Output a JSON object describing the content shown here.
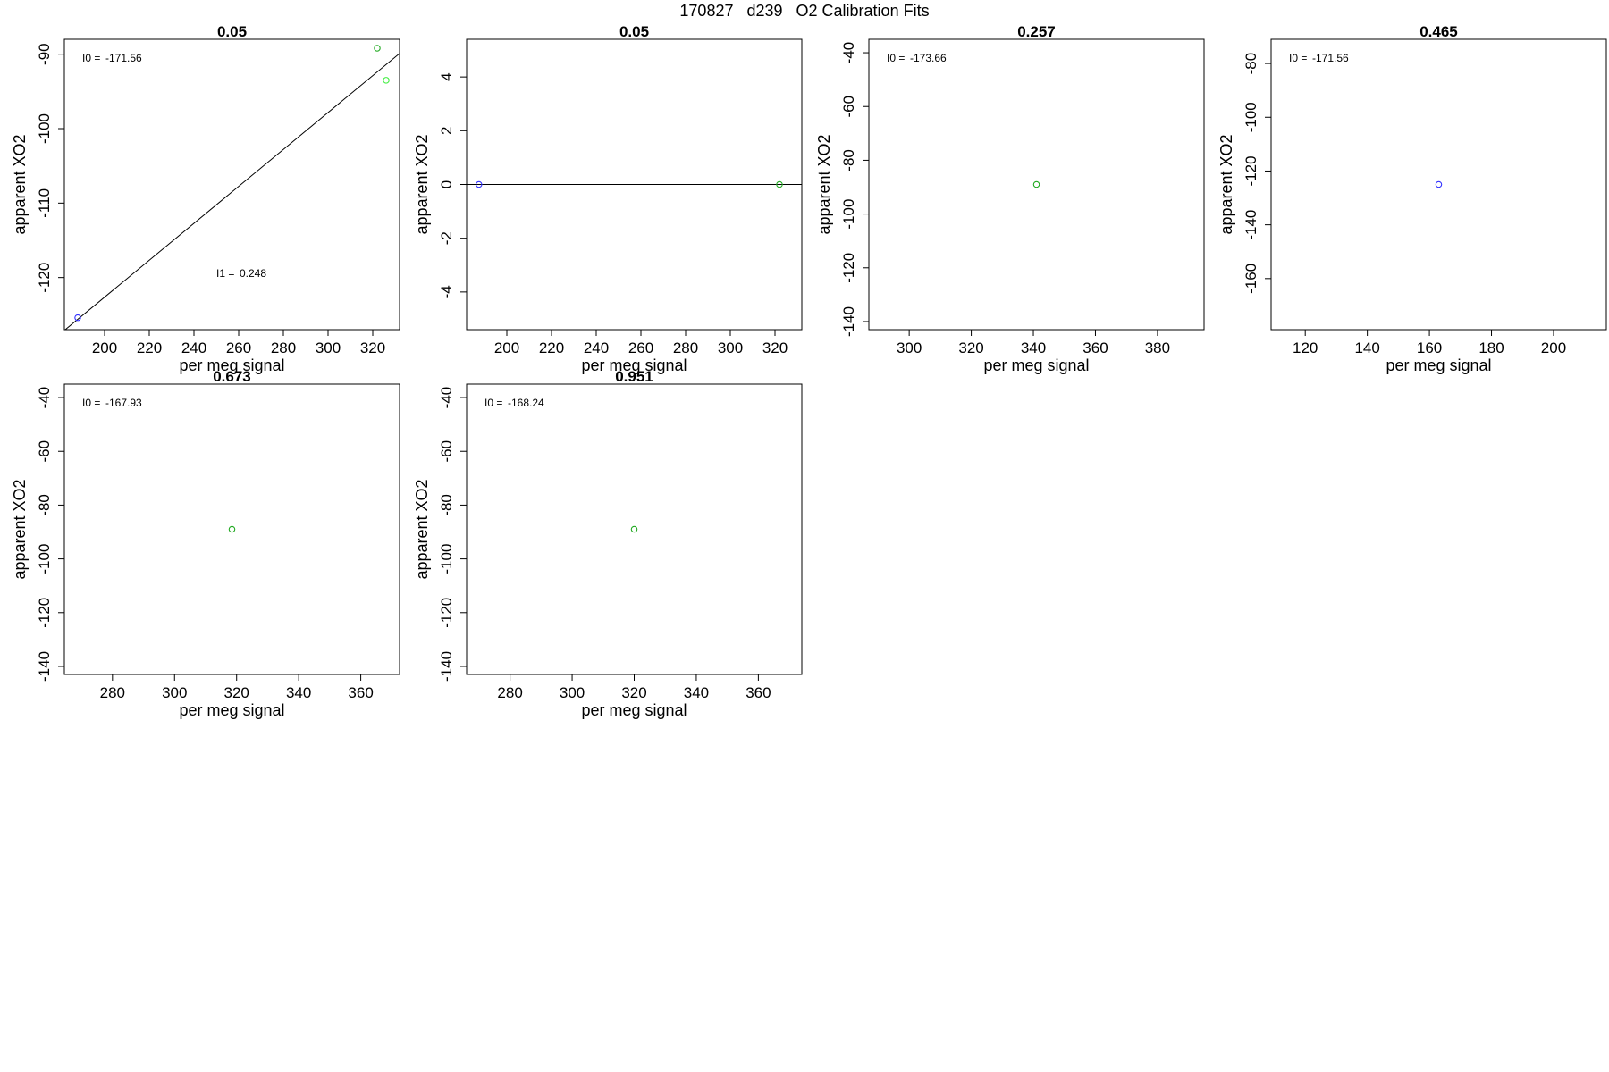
{
  "figure": {
    "title": "170827   d239   O2 Calibration Fits"
  },
  "colors": {
    "blue": "#3333ff",
    "green": "#22aa22",
    "lightgreen": "#44ee44",
    "axis": "#000000"
  },
  "chart_data": [
    {
      "type": "scatter",
      "title": "0.05",
      "xlabel": "per meg signal",
      "ylabel": "apparent XO2",
      "xlim": [
        182,
        332
      ],
      "ylim": [
        -127,
        -88
      ],
      "xticks": [
        200,
        220,
        240,
        260,
        280,
        300,
        320
      ],
      "yticks": [
        -90,
        -100,
        -110,
        -120
      ],
      "points": [
        {
          "x": 188,
          "y": -125.4,
          "color": "blue"
        },
        {
          "x": 322,
          "y": -89.2,
          "color": "green"
        },
        {
          "x": 326,
          "y": -93.5,
          "color": "lightgreen"
        }
      ],
      "fit_line": {
        "x": [
          182,
          332
        ],
        "y": [
          -127.1,
          -89.9
        ]
      },
      "annotations": [
        {
          "label": "I0 =",
          "value": "-171.56",
          "pos": "top-left"
        },
        {
          "label": "I1 =",
          "value": "0.248",
          "pos": "lower-middle"
        }
      ]
    },
    {
      "type": "scatter",
      "title": "0.05",
      "xlabel": "per meg signal",
      "ylabel": "apparent XO2",
      "xlim": [
        182,
        332
      ],
      "ylim": [
        -5.4,
        5.4
      ],
      "xticks": [
        200,
        220,
        240,
        260,
        280,
        300,
        320
      ],
      "yticks": [
        4,
        2,
        0,
        -2,
        -4
      ],
      "points": [
        {
          "x": 187.5,
          "y": 0,
          "color": "blue"
        },
        {
          "x": 322,
          "y": 0,
          "color": "green"
        }
      ],
      "fit_line": {
        "x": [
          182,
          332
        ],
        "y": [
          0,
          0
        ]
      },
      "annotations": []
    },
    {
      "type": "scatter",
      "title": "0.257",
      "xlabel": "per meg signal",
      "ylabel": "apparent XO2",
      "xlim": [
        287,
        395
      ],
      "ylim": [
        -143,
        -35
      ],
      "xticks": [
        300,
        320,
        340,
        360,
        380
      ],
      "yticks": [
        -40,
        -60,
        -80,
        -100,
        -120,
        -140
      ],
      "points": [
        {
          "x": 341,
          "y": -89,
          "color": "green"
        }
      ],
      "annotations": [
        {
          "label": "I0 =",
          "value": "-173.66",
          "pos": "top-left"
        }
      ]
    },
    {
      "type": "scatter",
      "title": "0.465",
      "xlabel": "per meg signal",
      "ylabel": "apparent XO2",
      "xlim": [
        109,
        217
      ],
      "ylim": [
        -179,
        -71
      ],
      "xticks": [
        120,
        140,
        160,
        180,
        200
      ],
      "yticks": [
        -80,
        -100,
        -120,
        -140,
        -160
      ],
      "points": [
        {
          "x": 163,
          "y": -125,
          "color": "blue"
        }
      ],
      "annotations": [
        {
          "label": "I0 =",
          "value": "-171.56",
          "pos": "top-left"
        }
      ]
    },
    {
      "type": "scatter",
      "title": "0.673",
      "xlabel": "per meg signal",
      "ylabel": "apparent XO2",
      "xlim": [
        264.5,
        372.5
      ],
      "ylim": [
        -143,
        -35
      ],
      "xticks": [
        280,
        300,
        320,
        340,
        360
      ],
      "yticks": [
        -40,
        -60,
        -80,
        -100,
        -120,
        -140
      ],
      "points": [
        {
          "x": 318.5,
          "y": -89,
          "color": "green"
        }
      ],
      "annotations": [
        {
          "label": "I0 =",
          "value": "-167.93",
          "pos": "top-left"
        }
      ]
    },
    {
      "type": "scatter",
      "title": "0.951",
      "xlabel": "per meg signal",
      "ylabel": "apparent XO2",
      "xlim": [
        266,
        374
      ],
      "ylim": [
        -143,
        -35
      ],
      "xticks": [
        280,
        300,
        320,
        340,
        360
      ],
      "yticks": [
        -40,
        -60,
        -80,
        -100,
        -120,
        -140
      ],
      "points": [
        {
          "x": 320,
          "y": -89,
          "color": "green"
        }
      ],
      "annotations": [
        {
          "label": "I0 =",
          "value": "-168.24",
          "pos": "top-left"
        }
      ]
    }
  ]
}
